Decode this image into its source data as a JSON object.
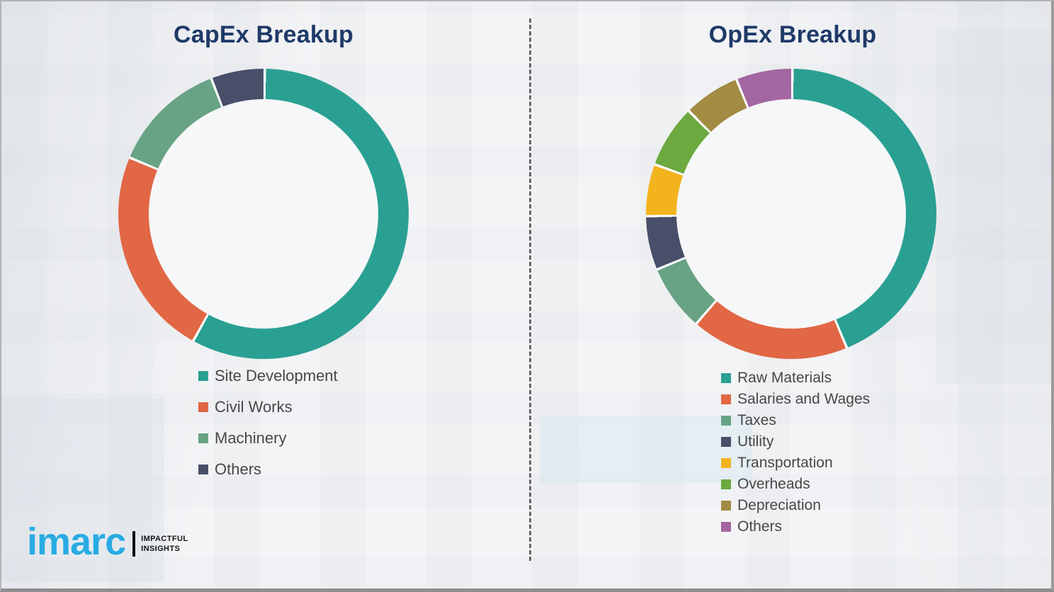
{
  "page": {
    "background_color": "#f3f4f6",
    "divider_style": "vertical-dashed-line",
    "divider_color": "#4d4d4d",
    "frame_border_color": "#9a9a9a",
    "title_color": "#1f3a68",
    "legend_text_color": "#474747"
  },
  "chart_data": [
    {
      "type": "pie",
      "subtype": "donut",
      "title": "CapEx Breakup",
      "categories": [
        "Site Development",
        "Civil Works",
        "Machinery",
        "Others"
      ],
      "values": [
        57.9,
        23.3,
        12.8,
        6.0
      ],
      "values_note": "percent of ring, estimated from arc angles (no numeric labels shown)",
      "colors": [
        "#2aa092",
        "#e16745",
        "#68a385",
        "#494e69"
      ],
      "start_angle_deg": 0,
      "direction": "clockwise",
      "segment_gap_color": "#ffffff",
      "legend_position": "below-chart-left",
      "grid": false
    },
    {
      "type": "pie",
      "subtype": "donut",
      "title": "OpEx Breakup",
      "categories": [
        "Raw Materials",
        "Salaries and Wages",
        "Taxes",
        "Utility",
        "Transportation",
        "Overheads",
        "Depreciation",
        "Others"
      ],
      "values": [
        43.6,
        17.6,
        7.4,
        6.0,
        5.8,
        7.0,
        6.3,
        6.3
      ],
      "values_note": "percent of ring, estimated from arc angles (no numeric labels shown)",
      "colors": [
        "#2aa092",
        "#e16745",
        "#68a385",
        "#494e69",
        "#f2b31d",
        "#6ca93f",
        "#a28b42",
        "#a466a0"
      ],
      "start_angle_deg": 0,
      "direction": "clockwise",
      "segment_gap_color": "#ffffff",
      "legend_position": "below-chart-left",
      "grid": false
    }
  ],
  "branding": {
    "logo_text": "imarc",
    "logo_color": "#29abe2",
    "tagline_line1": "IMPACTFUL",
    "tagline_line2": "INSIGHTS"
  }
}
